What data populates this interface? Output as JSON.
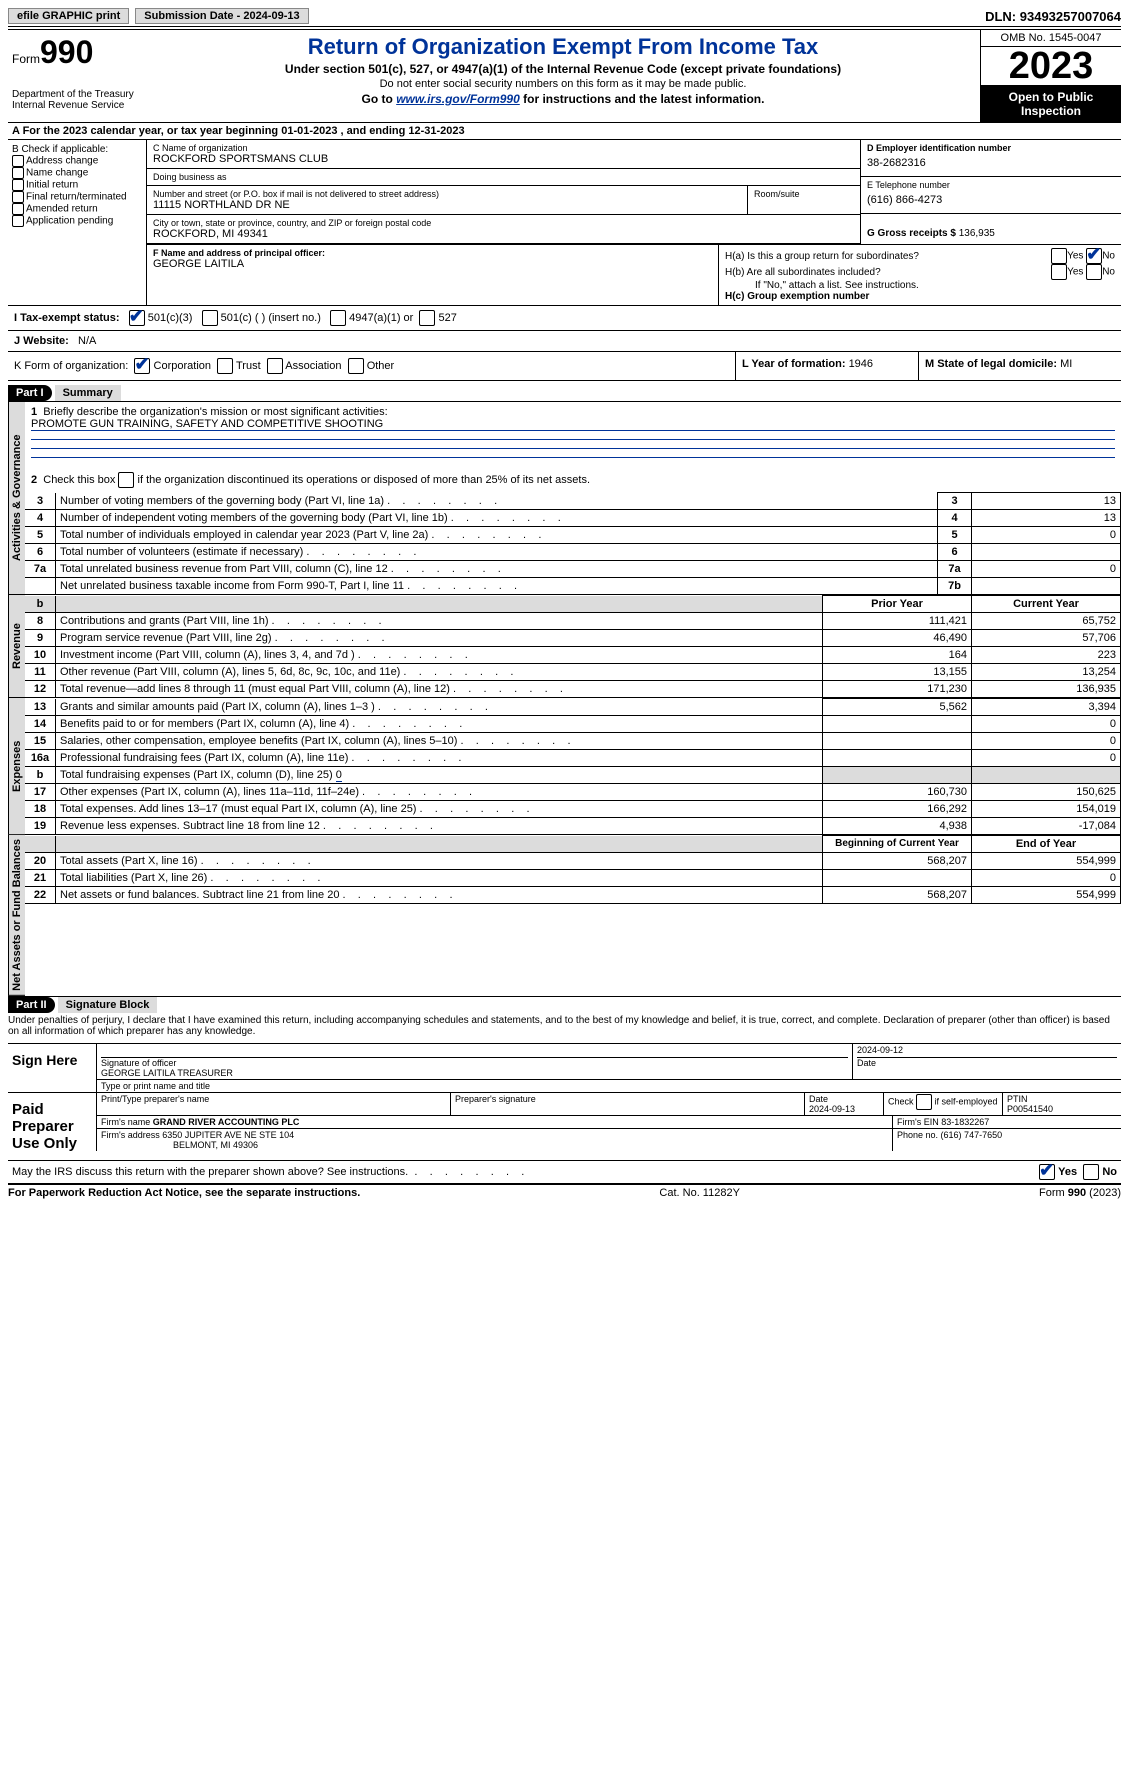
{
  "top": {
    "efile": "efile GRAPHIC print",
    "sub_date_label": "Submission Date - ",
    "sub_date": "2024-09-13",
    "dln_label": "DLN: ",
    "dln": "93493257007064"
  },
  "head": {
    "form_prefix": "Form",
    "form_no": "990",
    "dept": "Department of the Treasury\nInternal Revenue Service",
    "title": "Return of Organization Exempt From Income Tax",
    "sub1": "Under section 501(c), 527, or 4947(a)(1) of the Internal Revenue Code (except private foundations)",
    "sub2": "Do not enter social security numbers on this form as it may be made public.",
    "sub3_pre": "Go to ",
    "sub3_link": "www.irs.gov/Form990",
    "sub3_post": " for instructions and the latest information.",
    "omb": "OMB No. 1545-0047",
    "year": "2023",
    "otp": "Open to Public Inspection"
  },
  "rowA": {
    "text_pre": "A For the 2023 calendar year, or tax year beginning ",
    "begin": "01-01-2023",
    "mid": "    , and ending ",
    "end": "12-31-2023"
  },
  "colB": {
    "header": "B Check if applicable:",
    "opts": [
      "Address change",
      "Name change",
      "Initial return",
      "Final return/terminated",
      "Amended return",
      "Application pending"
    ]
  },
  "boxC": {
    "name_lbl": "C Name of organization",
    "name": "ROCKFORD SPORTSMANS CLUB",
    "dba_lbl": "Doing business as",
    "dba": "",
    "street_lbl": "Number and street (or P.O. box if mail is not delivered to street address)",
    "street": "11115 NORTHLAND DR NE",
    "room_lbl": "Room/suite",
    "room": "",
    "city_lbl": "City or town, state or province, country, and ZIP or foreign postal code",
    "city": "ROCKFORD, MI  49341"
  },
  "boxD": {
    "lbl": "D Employer identification number",
    "val": "38-2682316"
  },
  "boxE": {
    "lbl": "E Telephone number",
    "val": "(616) 866-4273"
  },
  "boxG": {
    "lbl": "G Gross receipts $ ",
    "val": "136,935"
  },
  "boxF": {
    "lbl": "F  Name and address of principal officer:",
    "val": "GEORGE LAITILA"
  },
  "boxH": {
    "a_lbl": "H(a)  Is this a group return for subordinates?",
    "b_lbl": "H(b)  Are all subordinates included?",
    "b_note": "If \"No,\" attach a list. See instructions.",
    "c_lbl": "H(c)  Group exemption number "
  },
  "taxExempt": {
    "lbl": "I    Tax-exempt status:",
    "o1": "501(c)(3)",
    "o2": "501(c) (   ) (insert no.)",
    "o3": "4947(a)(1) or",
    "o4": "527"
  },
  "website": {
    "lbl": "J   Website: ",
    "val": "N/A"
  },
  "boxK": {
    "lbl": "K Form of organization:",
    "o1": "Corporation",
    "o2": "Trust",
    "o3": "Association",
    "o4": "Other"
  },
  "boxL": {
    "lbl": "L Year of formation: ",
    "val": "1946"
  },
  "boxM": {
    "lbl": "M State of legal domicile: ",
    "val": "MI"
  },
  "part1": {
    "bar": "Part I",
    "title": "Summary",
    "l1_lbl": "Briefly describe the organization's mission or most significant activities:",
    "l1_val": "PROMOTE GUN TRAINING, SAFETY AND COMPETITIVE SHOOTING",
    "l2": "Check this box        if the organization discontinued its operations or disposed of more than 25% of its net assets.",
    "lines_ag": [
      {
        "n": "3",
        "d": "Number of voting members of the governing body (Part VI, line 1a)",
        "box": "3",
        "v": "13"
      },
      {
        "n": "4",
        "d": "Number of independent voting members of the governing body (Part VI, line 1b)",
        "box": "4",
        "v": "13"
      },
      {
        "n": "5",
        "d": "Total number of individuals employed in calendar year 2023 (Part V, line 2a)",
        "box": "5",
        "v": "0"
      },
      {
        "n": "6",
        "d": "Total number of volunteers (estimate if necessary)",
        "box": "6",
        "v": ""
      },
      {
        "n": "7a",
        "d": "Total unrelated business revenue from Part VIII, column (C), line 12",
        "box": "7a",
        "v": "0"
      },
      {
        "n": "",
        "d": "Net unrelated business taxable income from Form 990-T, Part I, line 11",
        "box": "7b",
        "v": ""
      }
    ],
    "hdr_b": "b",
    "hdr_prior": "Prior Year",
    "hdr_curr": "Current Year",
    "revenue": [
      {
        "n": "8",
        "d": "Contributions and grants (Part VIII, line 1h)",
        "p": "111,421",
        "c": "65,752"
      },
      {
        "n": "9",
        "d": "Program service revenue (Part VIII, line 2g)",
        "p": "46,490",
        "c": "57,706"
      },
      {
        "n": "10",
        "d": "Investment income (Part VIII, column (A), lines 3, 4, and 7d )",
        "p": "164",
        "c": "223"
      },
      {
        "n": "11",
        "d": "Other revenue (Part VIII, column (A), lines 5, 6d, 8c, 9c, 10c, and 11e)",
        "p": "13,155",
        "c": "13,254"
      },
      {
        "n": "12",
        "d": "Total revenue—add lines 8 through 11 (must equal Part VIII, column (A), line 12)",
        "p": "171,230",
        "c": "136,935"
      }
    ],
    "expenses": [
      {
        "n": "13",
        "d": "Grants and similar amounts paid (Part IX, column (A), lines 1–3 )",
        "p": "5,562",
        "c": "3,394"
      },
      {
        "n": "14",
        "d": "Benefits paid to or for members (Part IX, column (A), line 4)",
        "p": "",
        "c": "0"
      },
      {
        "n": "15",
        "d": "Salaries, other compensation, employee benefits (Part IX, column (A), lines 5–10)",
        "p": "",
        "c": "0"
      },
      {
        "n": "16a",
        "d": "Professional fundraising fees (Part IX, column (A), line 11e)",
        "p": "",
        "c": "0"
      }
    ],
    "l16b_n": "b",
    "l16b_d": "Total fundraising expenses (Part IX, column (D), line 25) ",
    "l16b_v": "0",
    "expenses2": [
      {
        "n": "17",
        "d": "Other expenses (Part IX, column (A), lines 11a–11d, 11f–24e)",
        "p": "160,730",
        "c": "150,625"
      },
      {
        "n": "18",
        "d": "Total expenses. Add lines 13–17 (must equal Part IX, column (A), line 25)",
        "p": "166,292",
        "c": "154,019"
      },
      {
        "n": "19",
        "d": "Revenue less expenses. Subtract line 18 from line 12",
        "p": "4,938",
        "c": "-17,084"
      }
    ],
    "hdr_bocy": "Beginning of Current Year",
    "hdr_eoy": "End of Year",
    "netassets": [
      {
        "n": "20",
        "d": "Total assets (Part X, line 16)",
        "p": "568,207",
        "c": "554,999"
      },
      {
        "n": "21",
        "d": "Total liabilities (Part X, line 26)",
        "p": "",
        "c": "0"
      },
      {
        "n": "22",
        "d": "Net assets or fund balances. Subtract line 21 from line 20",
        "p": "568,207",
        "c": "554,999"
      }
    ],
    "vtab_ag": "Activities & Governance",
    "vtab_rev": "Revenue",
    "vtab_exp": "Expenses",
    "vtab_na": "Net Assets or Fund Balances"
  },
  "part2": {
    "bar": "Part II",
    "title": "Signature Block",
    "decl": "Under penalties of perjury, I declare that I have examined this return, including accompanying schedules and statements, and to the best of my knowledge and belief, it is true, correct, and complete. Declaration of preparer (other than officer) is based on all information of which preparer has any knowledge.",
    "sign_here": "Sign Here",
    "sig_off_lbl": "Signature of officer",
    "sig_date_lbl": "Date",
    "sig_date": "2024-09-12",
    "sig_name": "GEORGE LAITILA  TREASURER",
    "sig_type_lbl": "Type or print name and title",
    "paid": "Paid Preparer Use Only",
    "p_name_lbl": "Print/Type preparer's name",
    "p_sig_lbl": "Preparer's signature",
    "p_date_lbl": "Date",
    "p_date": "2024-09-13",
    "p_self_lbl": "Check         if self-employed",
    "ptin_lbl": "PTIN",
    "ptin": "P00541540",
    "firm_name_lbl": "Firm's name    ",
    "firm_name": "GRAND RIVER ACCOUNTING PLC",
    "firm_ein_lbl": "Firm's EIN  ",
    "firm_ein": "83-1832267",
    "firm_addr_lbl": "Firm's address ",
    "firm_addr1": "6350 JUPITER AVE NE STE 104",
    "firm_addr2": "BELMONT, MI  49306",
    "phone_lbl": "Phone no. ",
    "phone": "(616) 747-7650",
    "may_irs": "May the IRS discuss this return with the preparer shown above? See instructions."
  },
  "footer": {
    "left": "For Paperwork Reduction Act Notice, see the separate instructions.",
    "mid": "Cat. No. 11282Y",
    "right": "Form 990 (2023)"
  },
  "yn": {
    "yes": "Yes",
    "no": "No"
  }
}
